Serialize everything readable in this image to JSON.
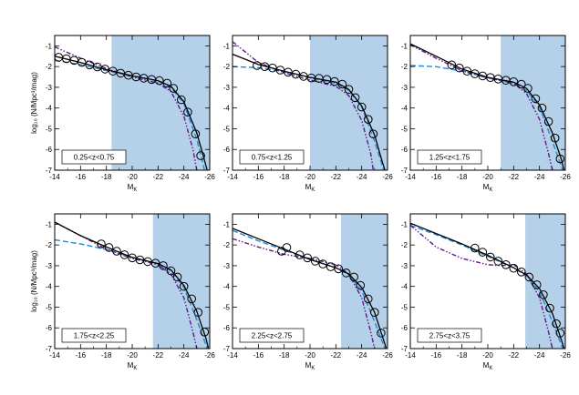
{
  "colors": {
    "shade": "#b5d1e9",
    "dashed_model": "#1f8ad6",
    "dashdot_model": "#5a1a8c",
    "solid_fit": "#000000",
    "points": "#000000"
  },
  "axes": {
    "xlabel_main": "M",
    "xlabel_sub": "K",
    "ylabel": "log₁₀ (N/Mpc³/mag)",
    "xticks": [
      -14,
      -16,
      -18,
      -20,
      -22,
      -24,
      -26
    ],
    "xtick_labels": [
      "-14",
      "-16",
      "-18",
      "-20",
      "-22",
      "-24",
      "-26"
    ],
    "yticks": [
      -1,
      -2,
      -3,
      -4,
      -5,
      -6,
      -7
    ],
    "ytick_labels": [
      "-1",
      "-2",
      "-3",
      "-4",
      "-5",
      "-6",
      "-7"
    ]
  },
  "chart_data": [
    {
      "type": "scatter",
      "label": "0.25<z<0.75",
      "xlim": [
        -14,
        -26
      ],
      "ylim": [
        -7,
        -0.5
      ],
      "shade_from": -18.4,
      "points": [
        [
          -14.3,
          -1.55
        ],
        [
          -14.9,
          -1.62
        ],
        [
          -15.5,
          -1.7
        ],
        [
          -16.1,
          -1.8
        ],
        [
          -16.7,
          -1.92
        ],
        [
          -17.3,
          -2.02
        ],
        [
          -17.9,
          -2.12
        ],
        [
          -18.5,
          -2.22
        ],
        [
          -19.1,
          -2.32
        ],
        [
          -19.7,
          -2.42
        ],
        [
          -20.3,
          -2.5
        ],
        [
          -20.9,
          -2.56
        ],
        [
          -21.5,
          -2.62
        ],
        [
          -22.1,
          -2.68
        ],
        [
          -22.7,
          -2.8
        ],
        [
          -23.2,
          -3.05
        ],
        [
          -23.8,
          -3.6
        ],
        [
          -24.3,
          -4.2
        ],
        [
          -24.9,
          -5.25
        ],
        [
          -25.3,
          -6.3
        ]
      ],
      "fit_solid": [
        [
          -14,
          -1.5
        ],
        [
          -16,
          -1.8
        ],
        [
          -18,
          -2.15
        ],
        [
          -20,
          -2.45
        ],
        [
          -22,
          -2.68
        ],
        [
          -23,
          -2.95
        ],
        [
          -24,
          -3.7
        ],
        [
          -25,
          -5.2
        ],
        [
          -25.5,
          -6.3
        ],
        [
          -25.8,
          -7.0
        ]
      ],
      "model_dashed": [
        [
          -14,
          -1.7
        ],
        [
          -16,
          -1.9
        ],
        [
          -18,
          -2.2
        ],
        [
          -20,
          -2.45
        ],
        [
          -22,
          -2.7
        ],
        [
          -23,
          -3.0
        ],
        [
          -24,
          -3.8
        ],
        [
          -25,
          -5.5
        ],
        [
          -25.6,
          -7.0
        ]
      ],
      "model_dashdot": [
        [
          -14,
          -1.05
        ],
        [
          -16,
          -1.6
        ],
        [
          -18,
          -2.1
        ],
        [
          -20,
          -2.5
        ],
        [
          -22,
          -2.8
        ],
        [
          -23,
          -3.2
        ],
        [
          -24,
          -4.4
        ],
        [
          -24.7,
          -6.0
        ],
        [
          -25.0,
          -7.0
        ]
      ]
    },
    {
      "type": "scatter",
      "label": "0.75<z<1.25",
      "xlim": [
        -14,
        -26
      ],
      "ylim": [
        -7,
        -0.5
      ],
      "shade_from": -20.0,
      "points": [
        [
          -15.9,
          -1.95
        ],
        [
          -16.5,
          -2.0
        ],
        [
          -17.1,
          -2.07
        ],
        [
          -17.7,
          -2.17
        ],
        [
          -18.3,
          -2.27
        ],
        [
          -18.9,
          -2.37
        ],
        [
          -19.5,
          -2.47
        ],
        [
          -20.1,
          -2.55
        ],
        [
          -20.7,
          -2.57
        ],
        [
          -21.3,
          -2.62
        ],
        [
          -21.9,
          -2.72
        ],
        [
          -22.5,
          -2.85
        ],
        [
          -23.0,
          -3.1
        ],
        [
          -23.5,
          -3.5
        ],
        [
          -24.0,
          -3.95
        ],
        [
          -24.5,
          -4.55
        ],
        [
          -24.9,
          -5.25
        ]
      ],
      "fit_solid": [
        [
          -14,
          -1.4
        ],
        [
          -16,
          -1.9
        ],
        [
          -18,
          -2.22
        ],
        [
          -20,
          -2.52
        ],
        [
          -22,
          -2.75
        ],
        [
          -23,
          -3.1
        ],
        [
          -24,
          -3.9
        ],
        [
          -25,
          -5.3
        ],
        [
          -25.6,
          -6.6
        ],
        [
          -25.8,
          -7.0
        ]
      ],
      "model_dashed": [
        [
          -14,
          -2.0
        ],
        [
          -16,
          -2.05
        ],
        [
          -18,
          -2.25
        ],
        [
          -20,
          -2.55
        ],
        [
          -22,
          -2.8
        ],
        [
          -23,
          -3.15
        ],
        [
          -24,
          -3.95
        ],
        [
          -25,
          -5.6
        ],
        [
          -25.7,
          -7.0
        ]
      ],
      "model_dashdot": [
        [
          -14,
          -0.8
        ],
        [
          -16,
          -1.8
        ],
        [
          -18,
          -2.3
        ],
        [
          -20,
          -2.65
        ],
        [
          -22,
          -2.95
        ],
        [
          -23,
          -3.4
        ],
        [
          -24,
          -4.6
        ],
        [
          -24.7,
          -6.2
        ],
        [
          -24.9,
          -7.0
        ]
      ]
    },
    {
      "type": "scatter",
      "label": "1.25<z<1.75",
      "xlim": [
        -14,
        -26
      ],
      "ylim": [
        -7,
        -0.5
      ],
      "shade_from": -21.0,
      "points": [
        [
          -17.2,
          -1.92
        ],
        [
          -17.8,
          -2.07
        ],
        [
          -18.4,
          -2.22
        ],
        [
          -19.0,
          -2.35
        ],
        [
          -19.6,
          -2.45
        ],
        [
          -20.2,
          -2.53
        ],
        [
          -20.8,
          -2.6
        ],
        [
          -21.4,
          -2.66
        ],
        [
          -22.0,
          -2.73
        ],
        [
          -22.6,
          -2.85
        ],
        [
          -23.1,
          -3.05
        ],
        [
          -23.7,
          -3.55
        ],
        [
          -24.2,
          -4.0
        ],
        [
          -24.7,
          -4.65
        ],
        [
          -25.2,
          -5.45
        ],
        [
          -25.6,
          -6.45
        ]
      ],
      "fit_solid": [
        [
          -14,
          -0.9
        ],
        [
          -16,
          -1.5
        ],
        [
          -18,
          -2.12
        ],
        [
          -20,
          -2.52
        ],
        [
          -22,
          -2.75
        ],
        [
          -23,
          -3.05
        ],
        [
          -24,
          -3.85
        ],
        [
          -25,
          -5.2
        ],
        [
          -25.7,
          -6.5
        ],
        [
          -25.9,
          -7.0
        ]
      ],
      "model_dashed": [
        [
          -14,
          -1.95
        ],
        [
          -16,
          -2.0
        ],
        [
          -18,
          -2.22
        ],
        [
          -20,
          -2.55
        ],
        [
          -22,
          -2.8
        ],
        [
          -23,
          -3.15
        ],
        [
          -24,
          -3.95
        ],
        [
          -25,
          -5.6
        ],
        [
          -25.8,
          -7.0
        ]
      ],
      "model_dashdot": [
        [
          -14,
          -0.95
        ],
        [
          -16,
          -1.6
        ],
        [
          -18,
          -2.2
        ],
        [
          -20,
          -2.55
        ],
        [
          -22,
          -2.8
        ],
        [
          -23,
          -3.3
        ],
        [
          -24,
          -4.55
        ],
        [
          -24.7,
          -6.2
        ],
        [
          -25.0,
          -7.0
        ]
      ]
    },
    {
      "type": "scatter",
      "label": "1.75<z<2.25",
      "xlim": [
        -14,
        -26
      ],
      "ylim": [
        -7,
        -0.5
      ],
      "shade_from": -21.6,
      "points": [
        [
          -17.6,
          -1.95
        ],
        [
          -18.2,
          -2.12
        ],
        [
          -18.8,
          -2.3
        ],
        [
          -19.4,
          -2.47
        ],
        [
          -20.0,
          -2.62
        ],
        [
          -20.6,
          -2.72
        ],
        [
          -21.2,
          -2.8
        ],
        [
          -21.8,
          -2.88
        ],
        [
          -22.4,
          -3.0
        ],
        [
          -23.0,
          -3.25
        ],
        [
          -23.5,
          -3.55
        ],
        [
          -24.0,
          -4.0
        ],
        [
          -24.6,
          -4.6
        ],
        [
          -25.1,
          -5.25
        ],
        [
          -25.6,
          -6.2
        ]
      ],
      "fit_solid": [
        [
          -14,
          -0.9
        ],
        [
          -16,
          -1.55
        ],
        [
          -18,
          -2.1
        ],
        [
          -20,
          -2.6
        ],
        [
          -22,
          -2.9
        ],
        [
          -23,
          -3.2
        ],
        [
          -24,
          -3.95
        ],
        [
          -25,
          -5.2
        ],
        [
          -25.7,
          -6.5
        ],
        [
          -25.9,
          -7.0
        ]
      ],
      "model_dashed": [
        [
          -14,
          -1.75
        ],
        [
          -16,
          -1.95
        ],
        [
          -18,
          -2.22
        ],
        [
          -20,
          -2.6
        ],
        [
          -22,
          -2.9
        ],
        [
          -23,
          -3.25
        ],
        [
          -24,
          -4.05
        ],
        [
          -25,
          -5.6
        ],
        [
          -25.8,
          -7.0
        ]
      ],
      "model_dashdot": [
        [
          -14,
          -0.9
        ],
        [
          -16,
          -1.55
        ],
        [
          -18,
          -2.2
        ],
        [
          -20,
          -2.65
        ],
        [
          -22,
          -2.95
        ],
        [
          -23,
          -3.4
        ],
        [
          -24,
          -4.55
        ],
        [
          -24.7,
          -6.2
        ],
        [
          -25.0,
          -7.0
        ]
      ]
    },
    {
      "type": "scatter",
      "label": "2.25<z<2.75",
      "xlim": [
        -14,
        -26
      ],
      "ylim": [
        -7,
        -0.5
      ],
      "shade_from": -22.4,
      "points": [
        [
          -18.2,
          -2.12
        ],
        [
          -17.8,
          -2.3
        ],
        [
          -19.2,
          -2.48
        ],
        [
          -19.8,
          -2.62
        ],
        [
          -20.4,
          -2.78
        ],
        [
          -21.0,
          -2.92
        ],
        [
          -21.6,
          -3.05
        ],
        [
          -22.2,
          -3.15
        ],
        [
          -22.8,
          -3.35
        ],
        [
          -23.4,
          -3.55
        ],
        [
          -23.9,
          -3.95
        ],
        [
          -24.5,
          -4.6
        ],
        [
          -25.0,
          -5.25
        ],
        [
          -25.5,
          -6.25
        ]
      ],
      "fit_solid": [
        [
          -14,
          -1.2
        ],
        [
          -16,
          -1.7
        ],
        [
          -18,
          -2.2
        ],
        [
          -20,
          -2.7
        ],
        [
          -22,
          -3.1
        ],
        [
          -23,
          -3.4
        ],
        [
          -24,
          -4.05
        ],
        [
          -25,
          -5.25
        ],
        [
          -25.7,
          -6.6
        ],
        [
          -25.9,
          -7.0
        ]
      ],
      "model_dashed": [
        [
          -14,
          -1.3
        ],
        [
          -16,
          -1.8
        ],
        [
          -18,
          -2.25
        ],
        [
          -20,
          -2.7
        ],
        [
          -22,
          -3.1
        ],
        [
          -23,
          -3.45
        ],
        [
          -24,
          -4.2
        ],
        [
          -25,
          -5.7
        ],
        [
          -25.8,
          -7.0
        ]
      ],
      "model_dashdot": [
        [
          -14,
          -1.7
        ],
        [
          -16,
          -2.1
        ],
        [
          -18,
          -2.45
        ],
        [
          -20,
          -2.65
        ],
        [
          -22,
          -2.95
        ],
        [
          -23,
          -3.4
        ],
        [
          -24,
          -4.55
        ],
        [
          -24.7,
          -6.2
        ],
        [
          -25.0,
          -7.0
        ]
      ]
    },
    {
      "type": "scatter",
      "label": "2.75<z<3.75",
      "xlim": [
        -14,
        -26
      ],
      "ylim": [
        -7,
        -0.5
      ],
      "shade_from": -22.9,
      "points": [
        [
          -19.0,
          -2.15
        ],
        [
          -19.6,
          -2.35
        ],
        [
          -20.2,
          -2.58
        ],
        [
          -20.8,
          -2.78
        ],
        [
          -21.4,
          -2.95
        ],
        [
          -22.0,
          -3.12
        ],
        [
          -22.6,
          -3.3
        ],
        [
          -23.2,
          -3.55
        ],
        [
          -23.8,
          -3.92
        ],
        [
          -24.3,
          -4.4
        ],
        [
          -24.8,
          -5.05
        ],
        [
          -25.3,
          -5.8
        ],
        [
          -25.6,
          -6.25
        ]
      ],
      "fit_solid": [
        [
          -14,
          -0.95
        ],
        [
          -16,
          -1.45
        ],
        [
          -18,
          -1.95
        ],
        [
          -20,
          -2.5
        ],
        [
          -22,
          -3.1
        ],
        [
          -23,
          -3.45
        ],
        [
          -24,
          -4.1
        ],
        [
          -25,
          -5.3
        ],
        [
          -25.7,
          -6.6
        ],
        [
          -25.9,
          -7.0
        ]
      ],
      "model_dashed": [
        [
          -14,
          -1.05
        ],
        [
          -16,
          -1.5
        ],
        [
          -18,
          -2.0
        ],
        [
          -20,
          -2.55
        ],
        [
          -22,
          -3.1
        ],
        [
          -23,
          -3.5
        ],
        [
          -24,
          -4.25
        ],
        [
          -25,
          -5.7
        ],
        [
          -25.8,
          -7.0
        ]
      ],
      "model_dashdot": [
        [
          -14,
          -1.05
        ],
        [
          -16,
          -2.1
        ],
        [
          -18,
          -2.65
        ],
        [
          -20,
          -2.95
        ],
        [
          -21,
          -3.0
        ],
        [
          -22,
          -2.95
        ],
        [
          -23,
          -3.4
        ],
        [
          -24,
          -4.55
        ],
        [
          -24.7,
          -6.2
        ],
        [
          -25.0,
          -7.0
        ]
      ]
    }
  ]
}
